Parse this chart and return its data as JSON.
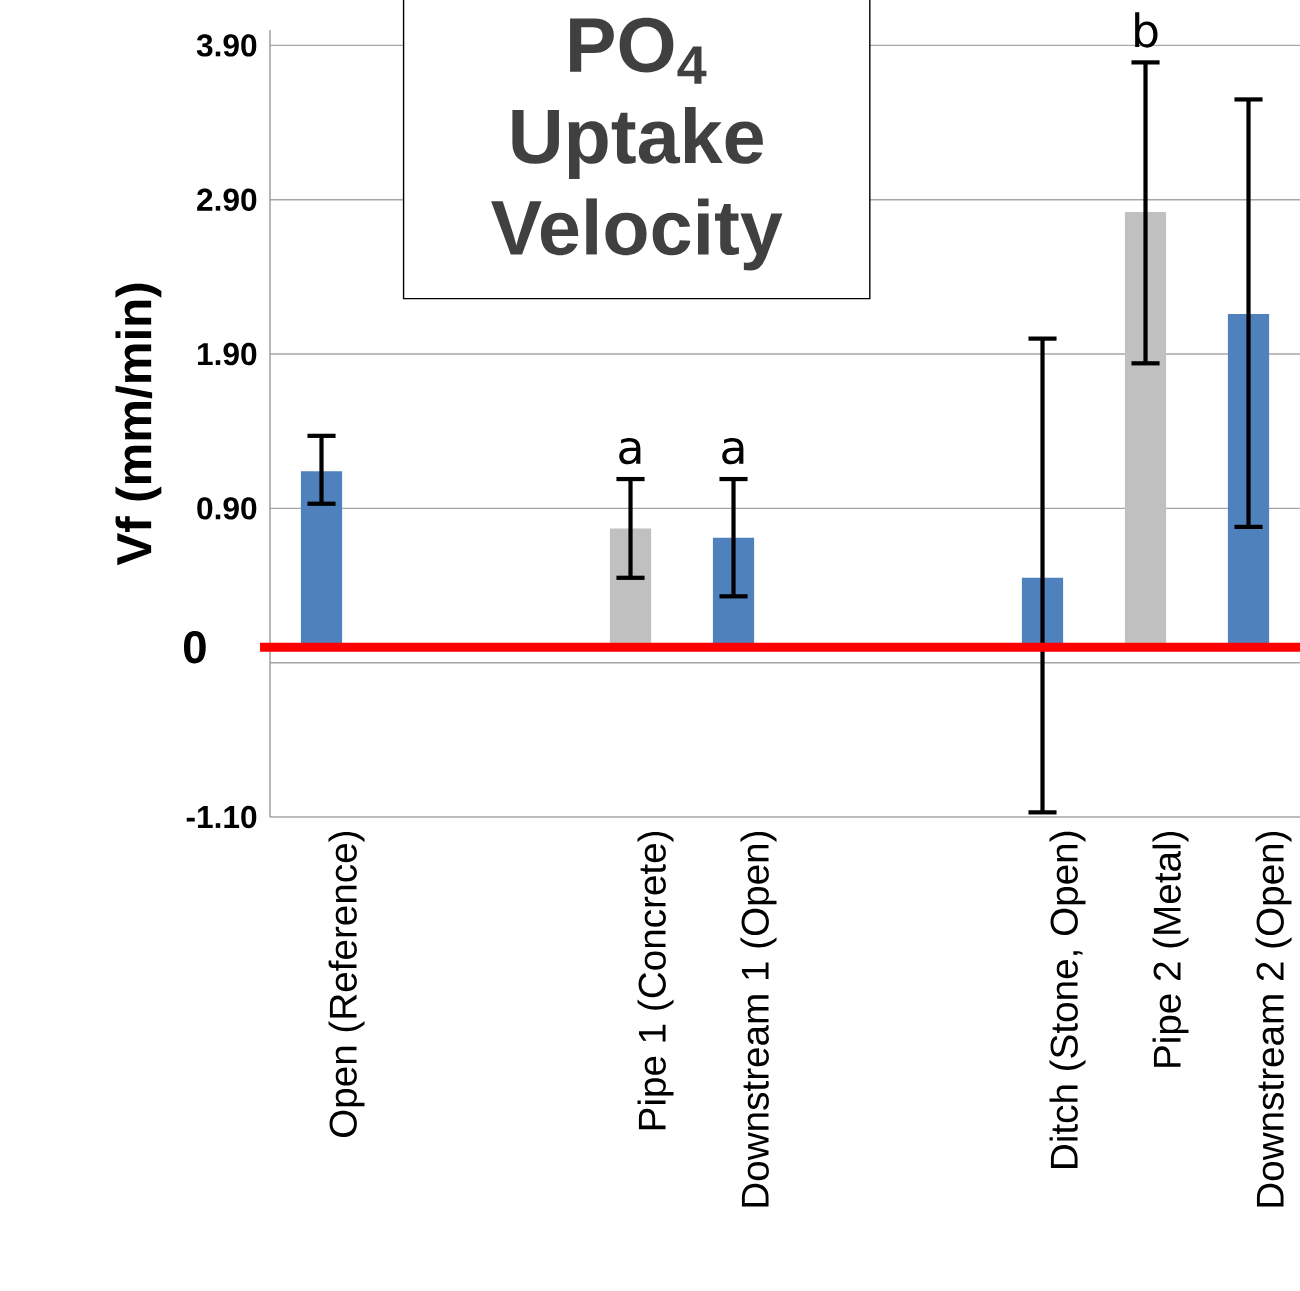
{
  "chart_data": {
    "type": "bar",
    "title": "PO$_{4}$ Uptake Velocity",
    "ylabel": "Vf (mm/min)",
    "categories": [
      "Open (Reference)",
      null,
      null,
      "Pipe 1 (Concrete)",
      "Downstream 1 (Open)",
      null,
      null,
      "Ditch (Stone, Open)",
      "Pipe 2 (Metal)",
      "Downstream 2 (Open)"
    ],
    "values": [
      1.14,
      null,
      null,
      0.77,
      0.71,
      null,
      null,
      0.45,
      2.82,
      2.16
    ],
    "colors": [
      "#4f81bd",
      "#4f81bd",
      "#4f81bd",
      "#c0c0c0",
      "#4f81bd",
      "#4f81bd",
      "#4f81bd",
      "#4f81bd",
      "#c0c0c0",
      "#4f81bd"
    ],
    "errors": [
      [
        0.93,
        1.37
      ],
      null,
      null,
      [
        0.45,
        1.09
      ],
      [
        0.33,
        1.09
      ],
      null,
      null,
      [
        -1.07,
        2.0
      ],
      [
        1.84,
        3.79
      ],
      [
        0.78,
        3.55
      ]
    ],
    "ylim": [
      -1.1,
      4.0
    ],
    "yticks": [
      {
        "value": -1.1,
        "label": "-1.10"
      },
      {
        "value": -0.1,
        "label": null
      },
      {
        "value": 0.9,
        "label": "0.90"
      },
      {
        "value": 1.9,
        "label": "1.90"
      },
      {
        "value": 2.9,
        "label": "2.90"
      },
      {
        "value": 3.9,
        "label": "3.90"
      }
    ],
    "grid": "y",
    "ref_lines": [
      {
        "axis": "y",
        "value": 0,
        "label": "0",
        "color": "#ff0000"
      }
    ],
    "annotations": [
      "a",
      "a",
      "b"
    ]
  }
}
